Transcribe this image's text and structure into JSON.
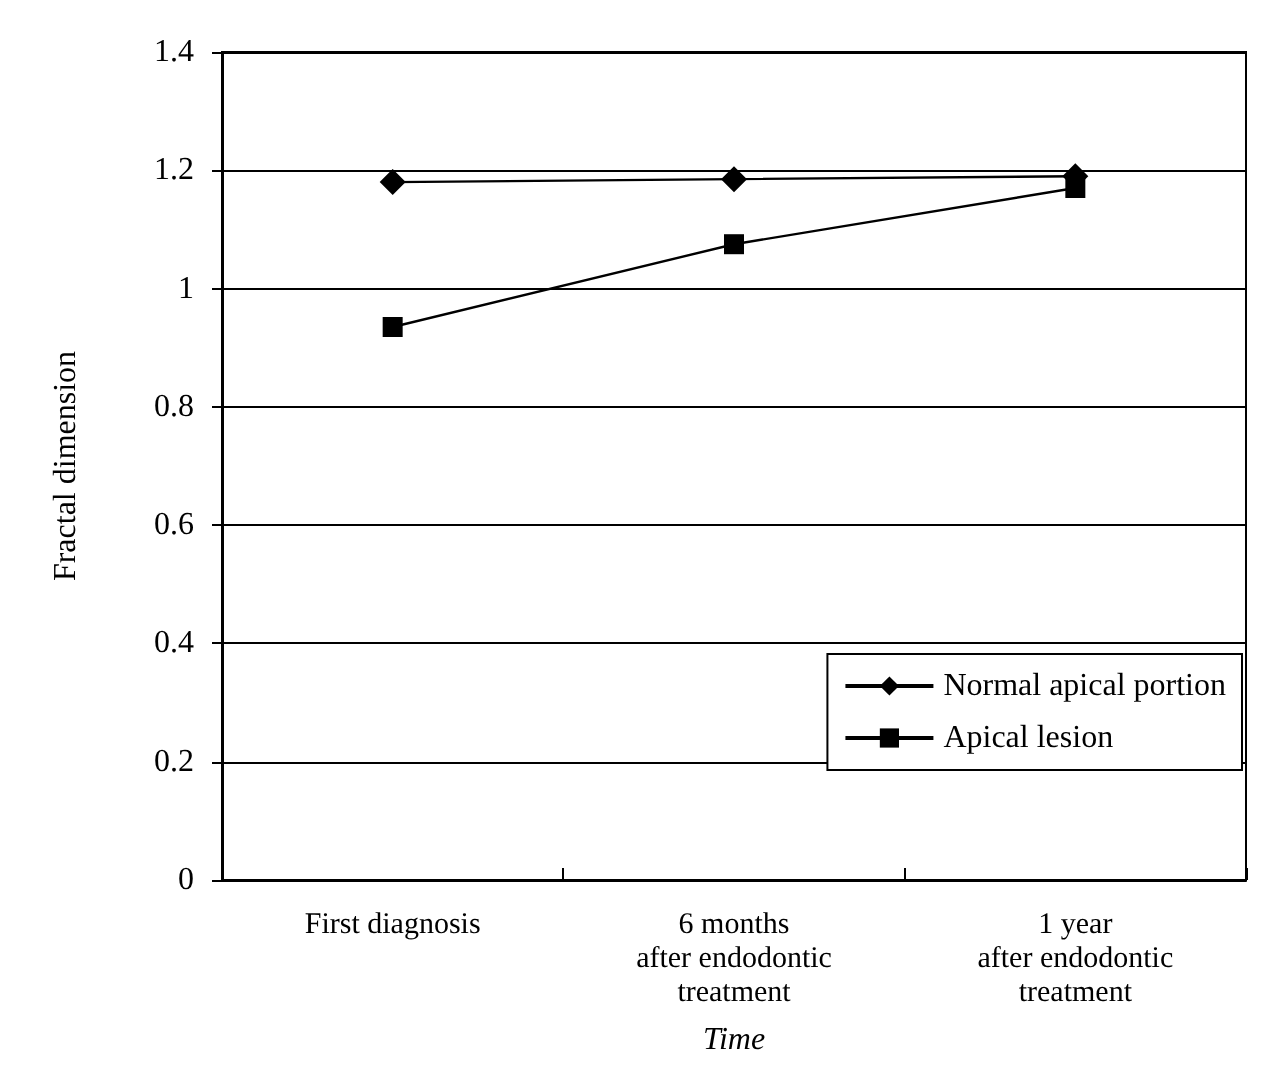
{
  "chart_data": {
    "type": "line",
    "xlabel": "Time",
    "ylabel": "Fractal dimension",
    "categories": [
      "First diagnosis",
      "6 months\nafter endodontic\ntreatment",
      "1 year\nafter endodontic\ntreatment"
    ],
    "series": [
      {
        "name": "Normal apical portion",
        "color": "#000000",
        "marker": "diamond",
        "values": [
          1.18,
          1.185,
          1.19
        ]
      },
      {
        "name": "Apical lesion",
        "color": "#000000",
        "marker": "square",
        "values": [
          0.935,
          1.075,
          1.17
        ]
      }
    ],
    "ylim": [
      0,
      1.4
    ],
    "yticks": [
      0,
      0.2,
      0.4,
      0.6,
      0.8,
      1,
      1.2,
      1.4
    ],
    "grid": "y",
    "legend": "bottom right",
    "line_style": "solid"
  }
}
